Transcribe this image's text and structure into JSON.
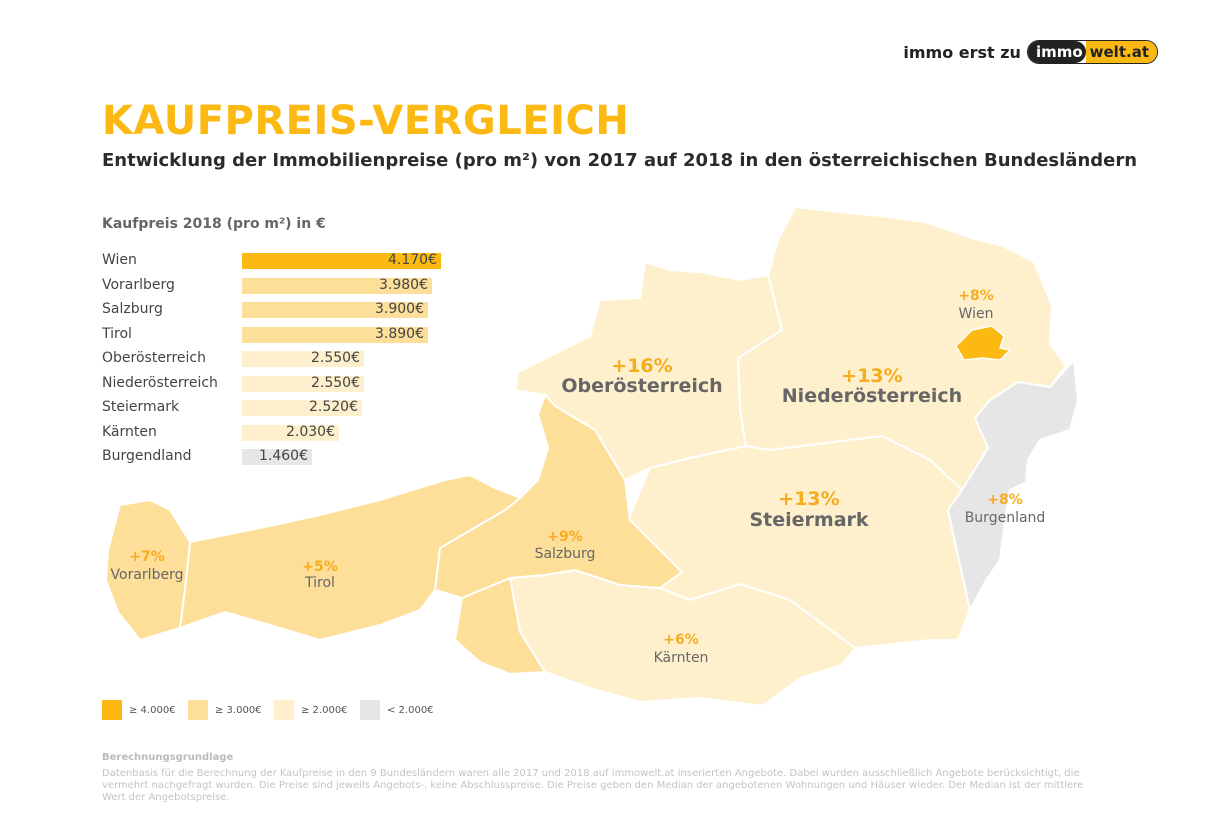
{
  "brand": {
    "pre": "immo erst zu",
    "logo_a": "immo",
    "logo_b": "welt.at"
  },
  "title": "KAUFPREIS-VERGLEICH",
  "subtitle": "Entwicklung der Immobilienpreise (pro m²) von 2017 auf 2018 in den österreichischen Bundesländern",
  "colors": {
    "ge4000": "#fdb913",
    "ge3000": "#fddf99",
    "ge2000": "#fef0cc",
    "lt2000": "#e6e6e6",
    "accent": "#f6ac1e"
  },
  "chart_data": {
    "type": "bar",
    "title": "Kaufpreis 2018 (pro m²) in €",
    "categories": [
      "Wien",
      "Vorarlberg",
      "Salzburg",
      "Tirol",
      "Oberösterreich",
      "Niederösterreich",
      "Steiermark",
      "Kärnten",
      "Burgendland"
    ],
    "values": [
      4170,
      3980,
      3900,
      3890,
      2550,
      2550,
      2520,
      2030,
      1460
    ],
    "value_labels": [
      "4.170€",
      "3.980€",
      "3.900€",
      "3.890€",
      "2.550€",
      "2.550€",
      "2.520€",
      "2.030€",
      "1.460€"
    ],
    "unit": "€"
  },
  "map": {
    "regions": [
      {
        "name": "Vorarlberg",
        "change": "+7%",
        "tier": "ge3000"
      },
      {
        "name": "Tirol",
        "change": "+5%",
        "tier": "ge3000"
      },
      {
        "name": "Salzburg",
        "change": "+9%",
        "tier": "ge3000"
      },
      {
        "name": "Kärnten",
        "change": "+6%",
        "tier": "ge2000"
      },
      {
        "name": "Oberösterreich",
        "change": "+16%",
        "tier": "ge2000"
      },
      {
        "name": "Niederösterreich",
        "change": "+13%",
        "tier": "ge2000"
      },
      {
        "name": "Steiermark",
        "change": "+13%",
        "tier": "ge2000"
      },
      {
        "name": "Wien",
        "change": "+8%",
        "tier": "ge4000"
      },
      {
        "name": "Burgenland",
        "change": "+8%",
        "tier": "lt2000"
      }
    ]
  },
  "legend": [
    "≥ 4.000€",
    "≥ 3.000€",
    "≥ 2.000€",
    "< 2.000€"
  ],
  "basis": {
    "heading": "Berechnungsgrundlage",
    "text": "Datenbasis für die Berechnung der Kaufpreise in den 9 Bundesländern waren alle 2017 und 2018 auf immowelt.at inserierten Angebote. Dabei wurden ausschließlich Angebote berücksichtigt, die vermehrt nachgefragt wurden. Die Preise sind jeweils Angebots-, keine Abschlusspreise. Die Preise geben den Median der angebotenen Wohnungen und Häuser wieder. Der Median ist der mittlere Wert der Angebotspreise."
  }
}
